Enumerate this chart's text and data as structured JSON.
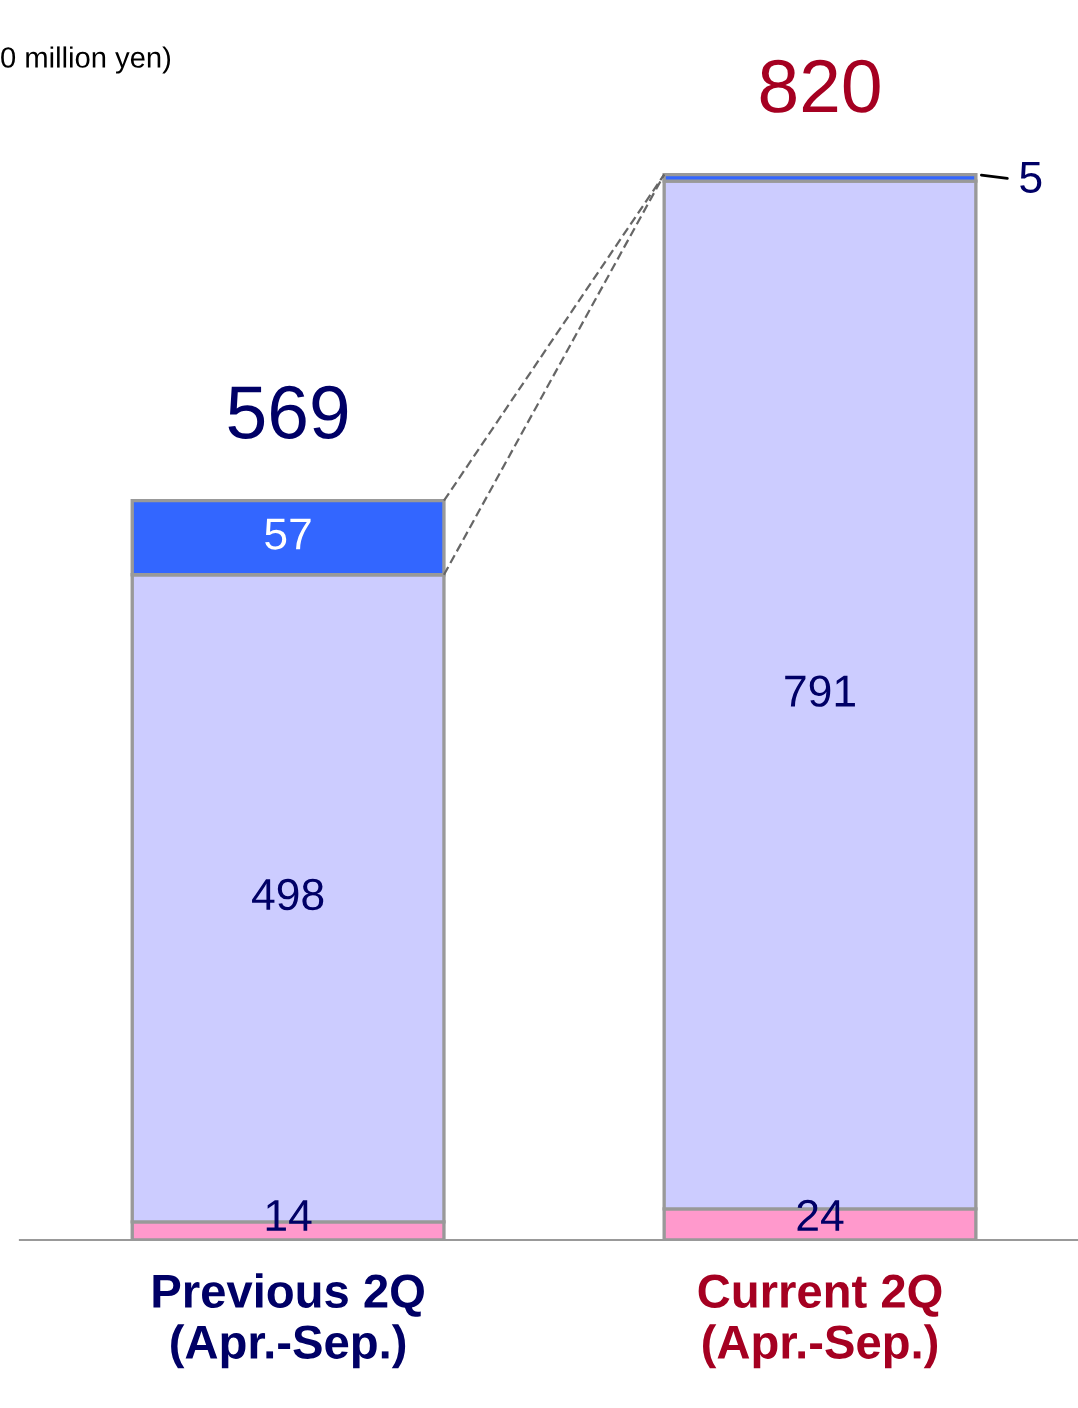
{
  "chart_data": {
    "type": "bar",
    "stacked": true,
    "data_labels": true,
    "categories": [
      "Previous 2Q\n(Apr.-Sep.)",
      "Current 2Q\n(Apr.-Sep.)"
    ],
    "series": [
      {
        "color": "#ff99cc",
        "values": [
          14,
          24
        ]
      },
      {
        "color": "#ccccff",
        "values": [
          498,
          791
        ]
      },
      {
        "color": "#3366ff",
        "values": [
          57,
          5
        ]
      }
    ],
    "totals": [
      "569",
      "820"
    ],
    "annotations": [
      "0 million yen)"
    ]
  }
}
